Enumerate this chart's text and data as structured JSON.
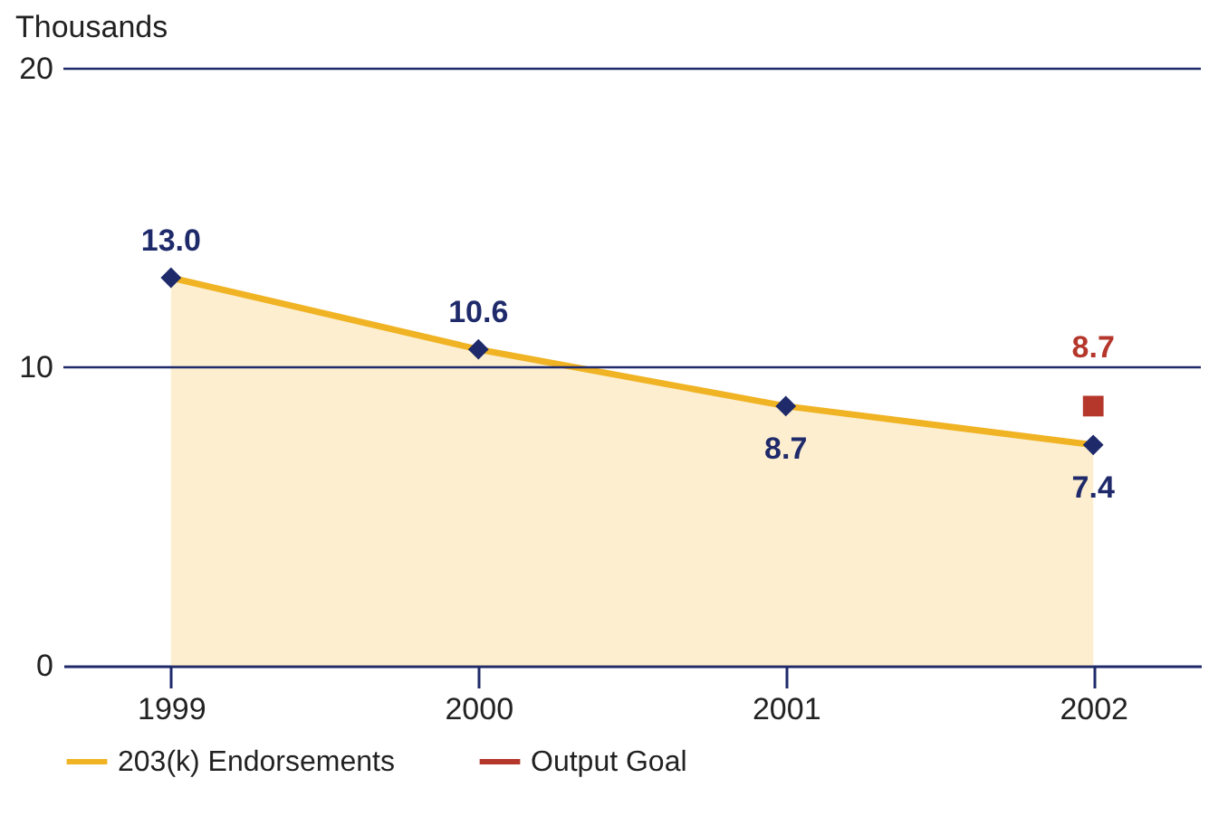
{
  "chart_data": {
    "type": "area",
    "ylabel": "Thousands",
    "categories": [
      "1999",
      "2000",
      "2001",
      "2002"
    ],
    "ylim": [
      0,
      20
    ],
    "yticks": [
      0,
      10,
      20
    ],
    "ref_lines": [
      {
        "axis": "y",
        "value": 10,
        "color": "#1f2a6b"
      },
      {
        "axis": "y",
        "value": 20,
        "color": "#1f2a6b"
      }
    ],
    "legend": "bottom",
    "marker": "diamond",
    "series": [
      {
        "name": "203(k) Endorsements",
        "color": "#f0b323",
        "values": [
          13.0,
          10.6,
          8.7,
          7.4
        ],
        "value_labels": [
          "13.0",
          "10.6",
          "8.7",
          "7.4"
        ]
      },
      {
        "name": "Output Goal",
        "type": "scatter",
        "marker": "square",
        "color": "#b5372c",
        "values": [
          null,
          null,
          null,
          8.7
        ],
        "value_labels": [
          null,
          null,
          null,
          "8.7"
        ]
      }
    ]
  }
}
